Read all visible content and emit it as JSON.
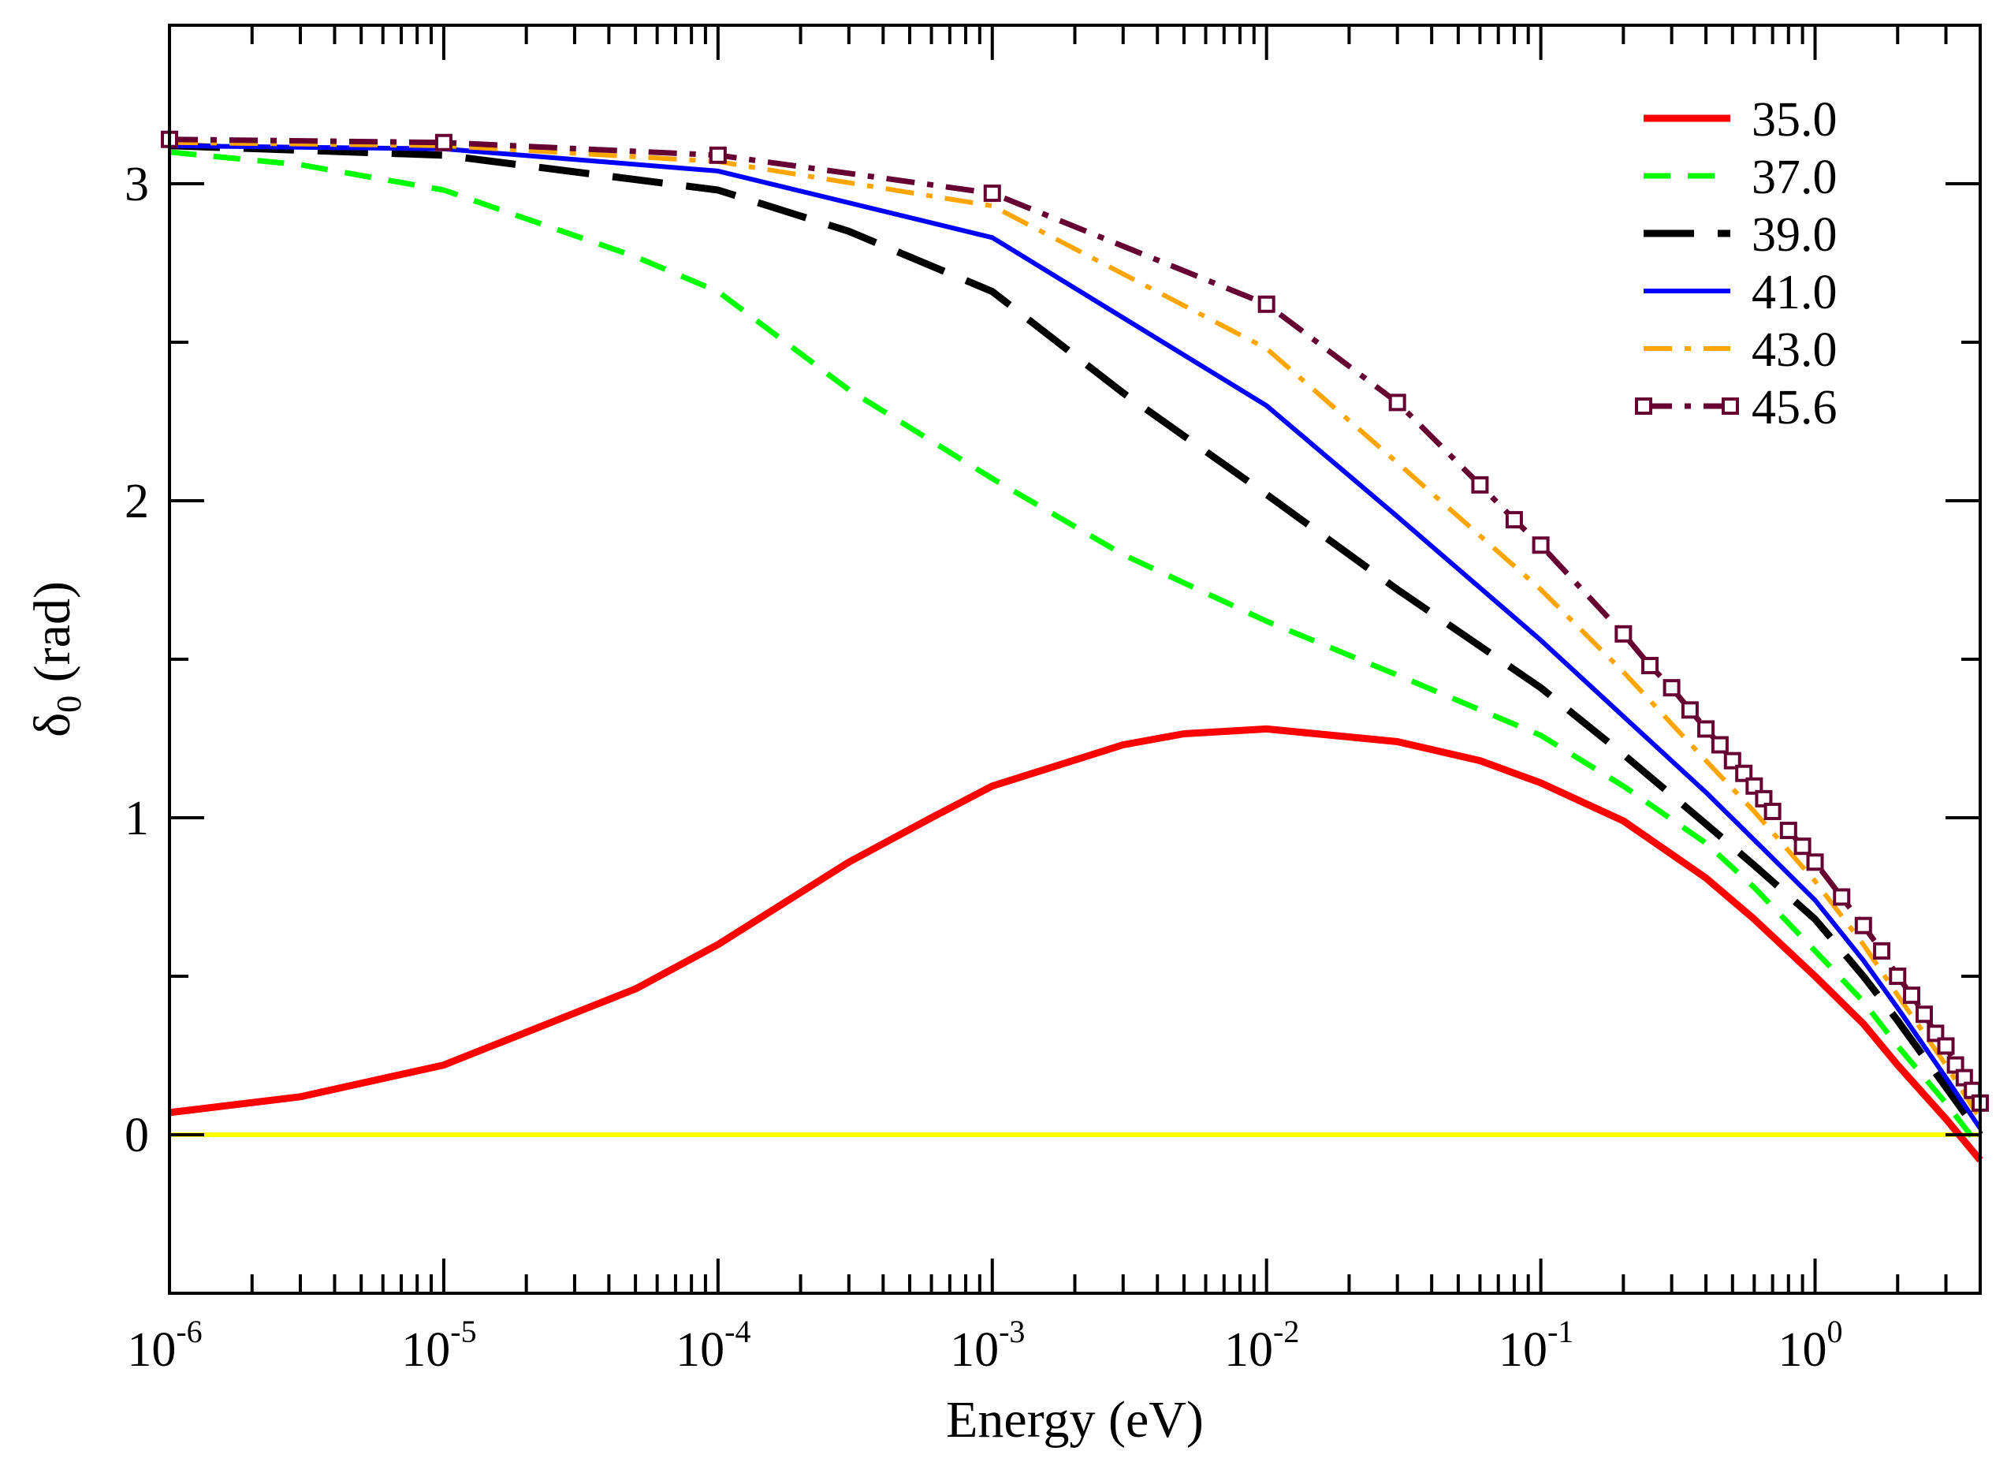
{
  "chart_data": {
    "type": "line",
    "title": "",
    "xlabel": "Energy (eV)",
    "ylabel_symbol": "δ",
    "ylabel_subscript": "0",
    "ylabel_unit": " (rad)",
    "xscale": "log10",
    "xlim": [
      1e-06,
      4.0
    ],
    "ylim": [
      -0.5,
      3.5
    ],
    "grid": false,
    "legend_position": "top-right",
    "x_ticks": [
      {
        "base": "10",
        "exp": "-6",
        "value": 1e-06
      },
      {
        "base": "10",
        "exp": "-5",
        "value": 1e-05
      },
      {
        "base": "10",
        "exp": "-4",
        "value": 0.0001
      },
      {
        "base": "10",
        "exp": "-3",
        "value": 0.001
      },
      {
        "base": "10",
        "exp": "-2",
        "value": 0.01
      },
      {
        "base": "10",
        "exp": "-1",
        "value": 0.1
      },
      {
        "base": "10",
        "exp": "0",
        "value": 1
      }
    ],
    "y_ticks": [
      {
        "label": "0",
        "value": 0
      },
      {
        "label": "1",
        "value": 1
      },
      {
        "label": "2",
        "value": 2
      },
      {
        "label": "3",
        "value": 3
      }
    ],
    "reference_line": {
      "y": 0,
      "color": "#ffff00"
    },
    "series": [
      {
        "name": "35.0",
        "color": "#ff0000",
        "dash": "solid",
        "marker": "none",
        "x": [
          1e-06,
          3e-06,
          1e-05,
          5e-05,
          0.0001,
          0.0003,
          0.0006,
          0.001,
          0.003,
          0.005,
          0.01,
          0.03,
          0.06,
          0.1,
          0.2,
          0.4,
          0.6,
          1.0,
          1.5,
          2.0,
          3.0,
          4.0
        ],
        "y": [
          0.07,
          0.12,
          0.22,
          0.46,
          0.6,
          0.86,
          1.0,
          1.1,
          1.23,
          1.265,
          1.28,
          1.24,
          1.18,
          1.11,
          0.99,
          0.81,
          0.68,
          0.5,
          0.35,
          0.22,
          0.05,
          -0.08
        ]
      },
      {
        "name": "37.0",
        "color": "#00ff00",
        "dash": "dashed",
        "marker": "none",
        "x": [
          1e-06,
          3e-06,
          1e-05,
          5e-05,
          0.0001,
          0.0003,
          0.001,
          0.003,
          0.01,
          0.03,
          0.1,
          0.2,
          0.4,
          0.6,
          1.0,
          1.5,
          2.0,
          3.0,
          4.0
        ],
        "y": [
          3.1,
          3.06,
          2.98,
          2.77,
          2.66,
          2.35,
          2.07,
          1.83,
          1.62,
          1.45,
          1.26,
          1.1,
          0.92,
          0.78,
          0.58,
          0.42,
          0.28,
          0.1,
          -0.04
        ]
      },
      {
        "name": "39.0",
        "color": "#000000",
        "dash": "longdash",
        "marker": "none",
        "x": [
          1e-06,
          1e-05,
          0.0001,
          0.0003,
          0.001,
          0.003,
          0.01,
          0.03,
          0.1,
          0.2,
          0.4,
          0.6,
          1.0,
          1.5,
          2.0,
          3.0,
          4.0
        ],
        "y": [
          3.12,
          3.09,
          2.98,
          2.85,
          2.66,
          2.34,
          2.02,
          1.72,
          1.41,
          1.2,
          0.98,
          0.85,
          0.68,
          0.5,
          0.36,
          0.15,
          0.0
        ]
      },
      {
        "name": "41.0",
        "color": "#0000ff",
        "dash": "solid",
        "marker": "none",
        "x": [
          1e-06,
          1e-05,
          0.0001,
          0.001,
          0.01,
          0.03,
          0.1,
          0.2,
          0.4,
          0.6,
          1.0,
          1.5,
          2.0,
          3.0,
          4.0
        ],
        "y": [
          3.12,
          3.11,
          3.04,
          2.83,
          2.3,
          1.95,
          1.56,
          1.32,
          1.08,
          0.93,
          0.74,
          0.55,
          0.4,
          0.18,
          0.02
        ]
      },
      {
        "name": "43.0",
        "color": "#ffa500",
        "dash": "dashdot",
        "marker": "none",
        "x": [
          1e-06,
          1e-05,
          0.0001,
          0.001,
          0.01,
          0.03,
          0.1,
          0.2,
          0.4,
          0.6,
          1.0,
          1.5,
          2.0,
          3.0,
          4.0
        ],
        "y": [
          3.13,
          3.12,
          3.07,
          2.93,
          2.48,
          2.12,
          1.72,
          1.46,
          1.18,
          1.02,
          0.8,
          0.6,
          0.44,
          0.22,
          0.05
        ]
      },
      {
        "name": "45.6",
        "color": "#660033",
        "dash": "dashdot",
        "marker": "square-open",
        "x": [
          1e-06,
          1e-05,
          0.0001,
          0.001,
          0.01,
          0.03,
          0.06,
          0.08,
          0.1,
          0.2,
          0.25,
          0.3,
          0.35,
          0.4,
          0.45,
          0.5,
          0.55,
          0.6,
          0.65,
          0.7,
          0.8,
          0.9,
          1.0,
          1.25,
          1.5,
          1.75,
          2.0,
          2.25,
          2.5,
          2.75,
          3.0,
          3.25,
          3.5,
          3.75,
          4.0
        ],
        "y": [
          3.14,
          3.13,
          3.09,
          2.97,
          2.62,
          2.31,
          2.05,
          1.94,
          1.86,
          1.58,
          1.48,
          1.41,
          1.34,
          1.28,
          1.23,
          1.18,
          1.14,
          1.1,
          1.06,
          1.02,
          0.96,
          0.91,
          0.86,
          0.75,
          0.66,
          0.58,
          0.5,
          0.44,
          0.38,
          0.32,
          0.28,
          0.22,
          0.18,
          0.14,
          0.1
        ]
      }
    ]
  }
}
